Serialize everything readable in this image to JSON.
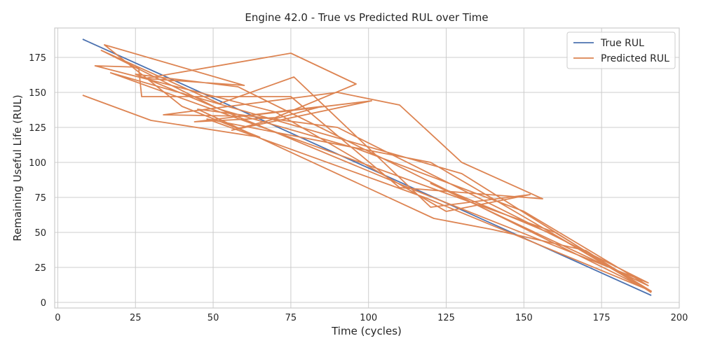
{
  "chart_data": {
    "type": "line",
    "title": "Engine 42.0 - True vs Predicted RUL over Time",
    "xlabel": "Time (cycles)",
    "ylabel": "Remaining Useful Life (RUL)",
    "xlim": [
      -1,
      200
    ],
    "ylim": [
      -4,
      196
    ],
    "xticks": [
      0,
      25,
      50,
      75,
      100,
      125,
      150,
      175,
      200
    ],
    "yticks": [
      0,
      25,
      50,
      75,
      100,
      125,
      150,
      175
    ],
    "grid": true,
    "legend_position": "top-right",
    "series": [
      {
        "name": "True RUL",
        "color": "#4c72b0",
        "x": [
          8,
          191
        ],
        "y": [
          188,
          5
        ]
      },
      {
        "name": "Predicted RUL",
        "color": "#dd8452",
        "x": [
          8,
          30,
          65,
          40,
          15,
          60,
          28,
          75,
          96,
          70,
          44,
          85,
          56,
          101,
          60,
          34,
          90,
          110,
          130,
          156,
          110,
          75,
          27,
          26,
          12,
          70,
          125,
          152,
          120,
          76,
          52,
          14,
          52,
          96,
          150,
          190,
          120,
          160,
          189,
          130,
          17,
          160,
          191,
          120,
          48,
          118,
          190,
          58,
          25,
          115,
          190,
          90,
          45,
          121,
          140,
          170,
          191
        ],
        "y": [
          148,
          130,
          118,
          140,
          184,
          155,
          160,
          178,
          156,
          132,
          129,
          140,
          123,
          144,
          133,
          134,
          150,
          141,
          100,
          74,
          82,
          147,
          147,
          168,
          169,
          136,
          65,
          77,
          68,
          161,
          142,
          180,
          138,
          110,
          65,
          12,
          85,
          48,
          10,
          92,
          164,
          50,
          8,
          100,
          131,
          75,
          9,
          154,
          163,
          80,
          14,
          125,
          138,
          60,
          52,
          37,
          7
        ]
      }
    ]
  }
}
